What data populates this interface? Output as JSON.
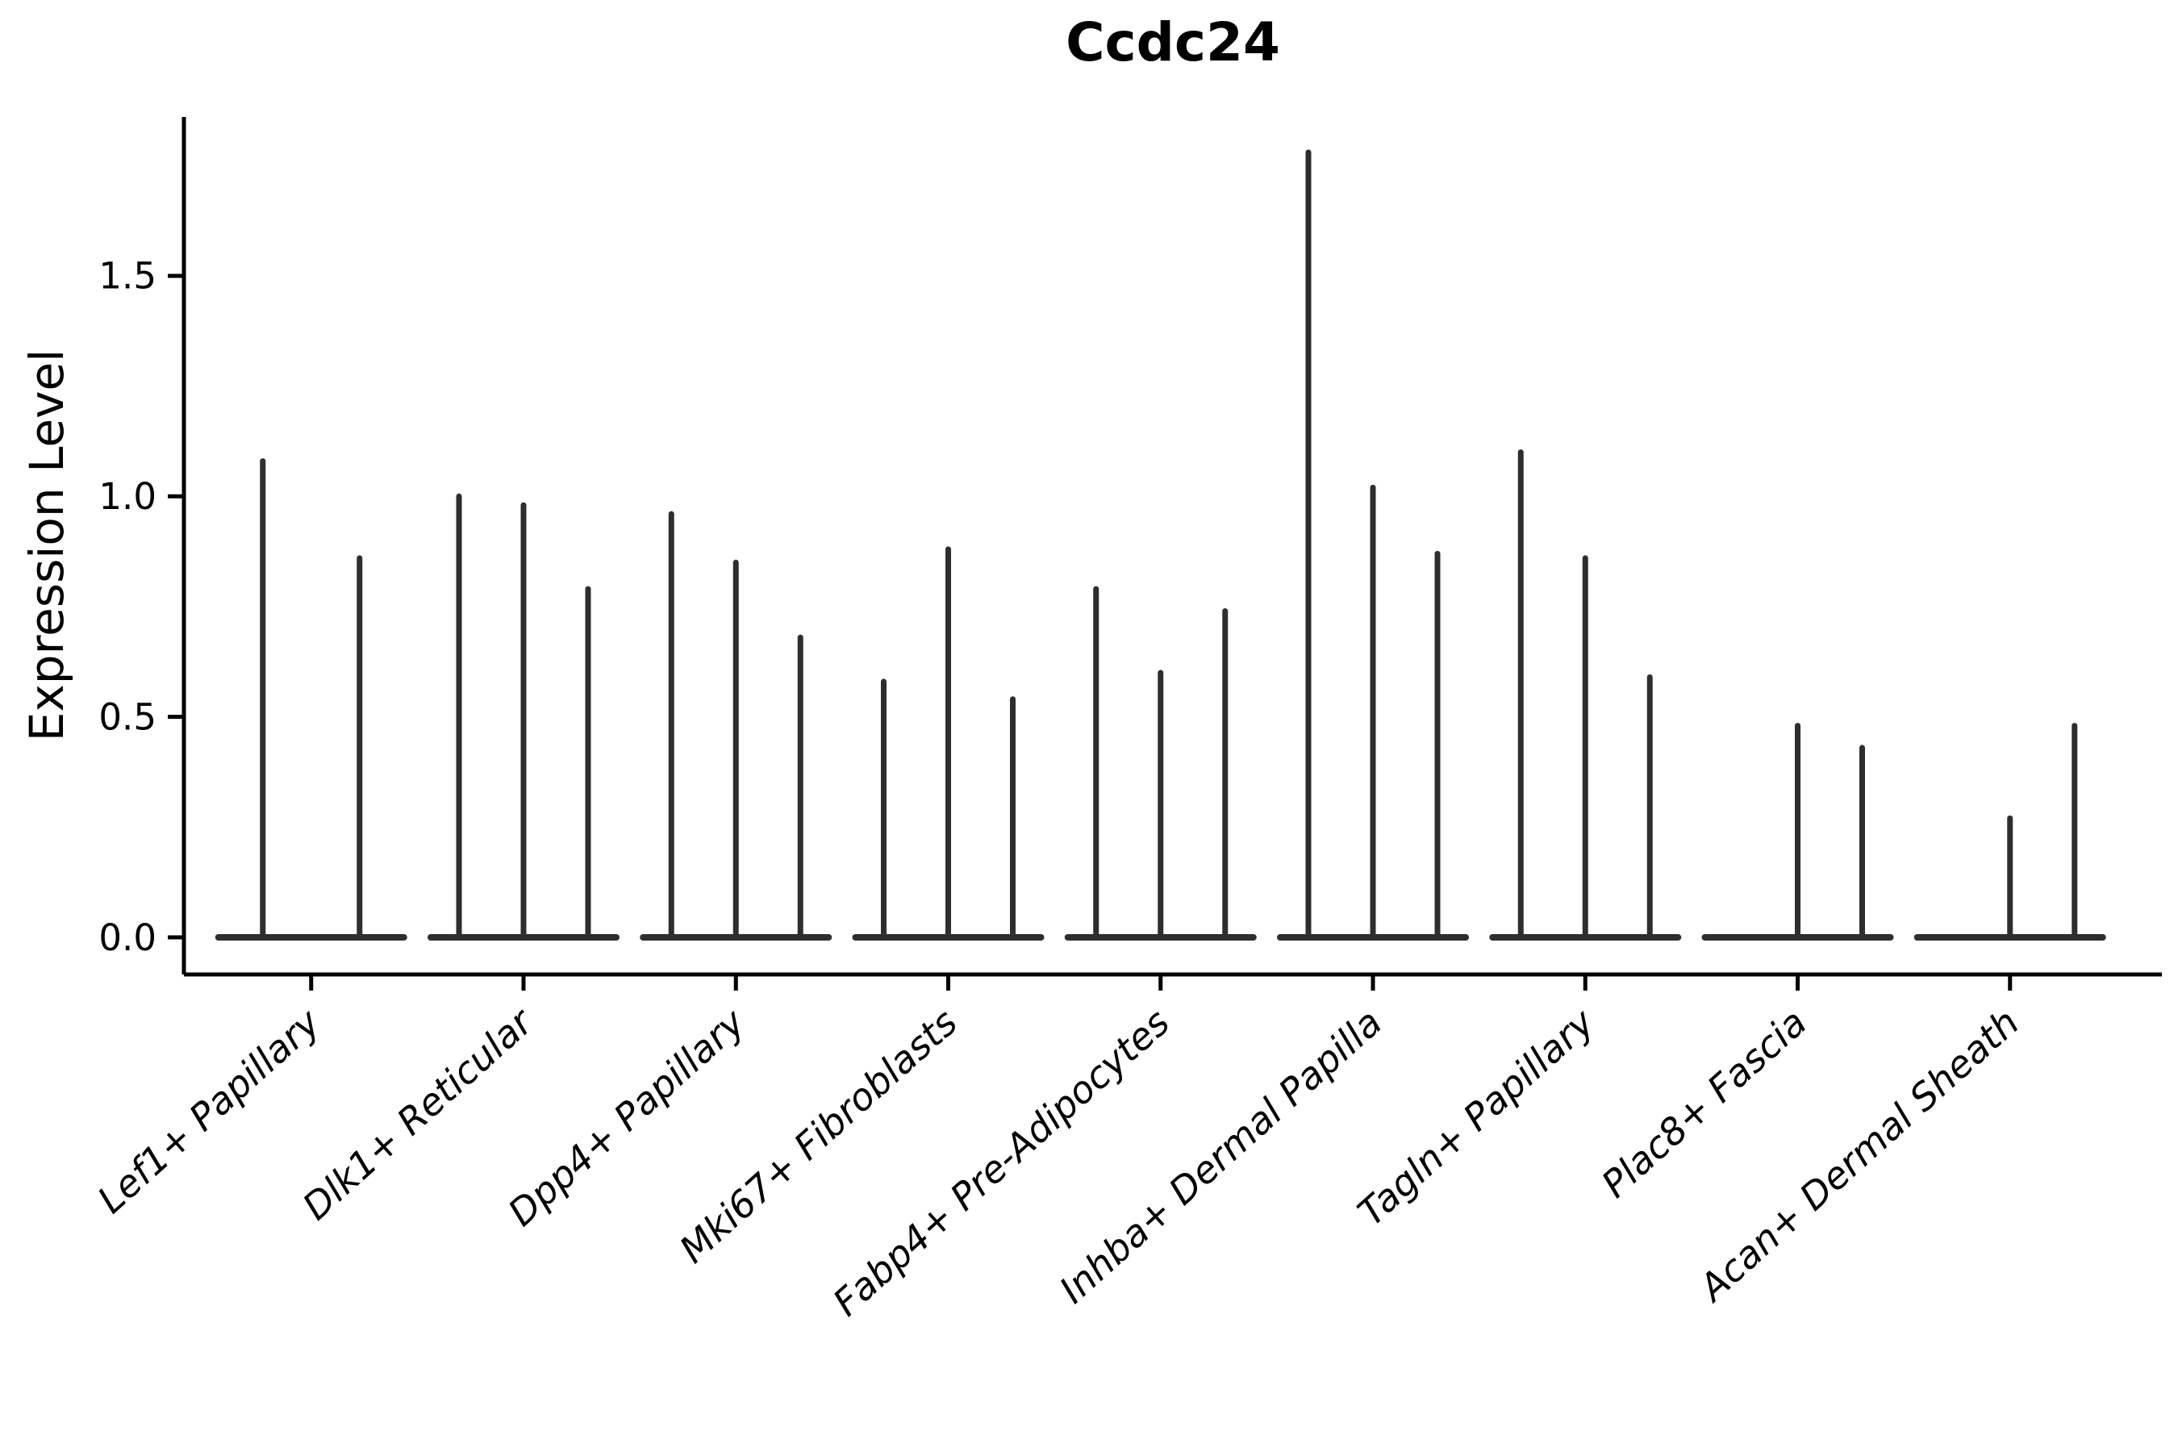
{
  "title": "Ccdc24",
  "chart_data": {
    "type": "violin",
    "title": "Ccdc24",
    "xlabel": "",
    "ylabel": "Expression Level",
    "ylim": [
      -0.08,
      1.86
    ],
    "yticks": [
      "0.0",
      "0.5",
      "1.0",
      "1.5"
    ],
    "ytick_values": [
      0.0,
      0.5,
      1.0,
      1.5
    ],
    "grid": "off",
    "legend": "none",
    "note": "Seurat-style stacked violin plot of gene Ccdc24; each category shows needle-thin violins (sparse expression) rising from a flat base at 0. Zero entries are violins with no expressing cells (flat disc only).",
    "categories": [
      "Lef1+ Papillary",
      "Dlk1+ Reticular",
      "Dpp4+ Papillary",
      "Mki67+ Fibroblasts",
      "Fabp4+ Pre-Adipocytes",
      "Inhba+ Dermal Papilla",
      "Tagln+ Papillary",
      "Plac8+ Fascia",
      "Acan+ Dermal Sheath"
    ],
    "series": [
      {
        "category": "Lef1+ Papillary",
        "violin_peaks": [
          1.08,
          0.86
        ]
      },
      {
        "category": "Dlk1+ Reticular",
        "violin_peaks": [
          1.0,
          0.98,
          0.79
        ]
      },
      {
        "category": "Dpp4+ Papillary",
        "violin_peaks": [
          0.96,
          0.85,
          0.68
        ]
      },
      {
        "category": "Mki67+ Fibroblasts",
        "violin_peaks": [
          0.58,
          0.88,
          0.54
        ]
      },
      {
        "category": "Fabp4+ Pre-Adipocytes",
        "violin_peaks": [
          0.79,
          0.6,
          0.74
        ]
      },
      {
        "category": "Inhba+ Dermal Papilla",
        "violin_peaks": [
          1.78,
          1.02,
          0.87
        ]
      },
      {
        "category": "Tagln+ Papillary",
        "violin_peaks": [
          1.1,
          0.86,
          0.59
        ]
      },
      {
        "category": "Plac8+ Fascia",
        "violin_peaks": [
          0.0,
          0.48,
          0.43
        ]
      },
      {
        "category": "Acan+ Dermal Sheath",
        "violin_peaks": [
          0.0,
          0.27,
          0.48
        ]
      }
    ],
    "colors": {
      "violin": "#2e2e2e",
      "axis": "#000000",
      "text": "#000000",
      "background": "#ffffff"
    }
  }
}
